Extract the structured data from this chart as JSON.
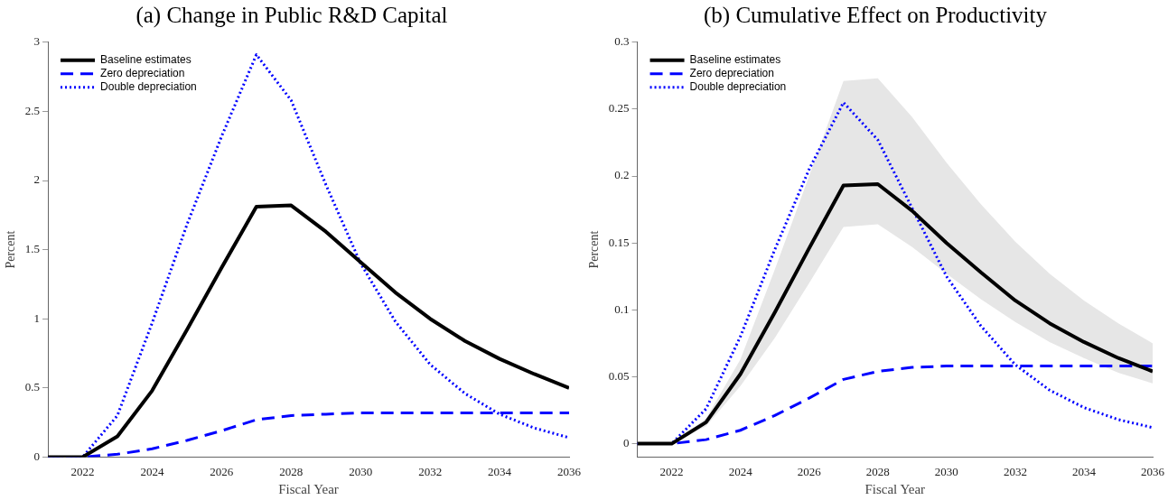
{
  "chart_data": [
    {
      "type": "line",
      "title": "(a) Change in Public R&D Capital",
      "xlabel": "Fiscal Year",
      "ylabel": "Percent",
      "x": [
        2021,
        2022,
        2023,
        2024,
        2025,
        2026,
        2027,
        2028,
        2029,
        2030,
        2031,
        2032,
        2033,
        2034,
        2035,
        2036
      ],
      "xlim": [
        2021,
        2036
      ],
      "xticks": [
        2022,
        2024,
        2026,
        2028,
        2030,
        2032,
        2034,
        2036
      ],
      "ylim": [
        0,
        3
      ],
      "yticks": [
        0,
        0.5,
        1,
        1.5,
        2,
        2.5,
        3
      ],
      "grid": false,
      "legend": "top left",
      "marker": "none",
      "series": [
        {
          "name": "Baseline estimates",
          "color": "#000000",
          "line_style": "solid",
          "values": [
            0,
            0,
            0.15,
            0.48,
            0.92,
            1.37,
            1.81,
            1.82,
            1.63,
            1.41,
            1.19,
            1.0,
            0.84,
            0.71,
            0.6,
            0.5
          ]
        },
        {
          "name": "Zero depreciation",
          "color": "#0000ff",
          "line_style": "dashed",
          "values": [
            0,
            0,
            0.02,
            0.06,
            0.12,
            0.19,
            0.27,
            0.3,
            0.31,
            0.32,
            0.32,
            0.32,
            0.32,
            0.32,
            0.32,
            0.32
          ]
        },
        {
          "name": "Double depreciation",
          "color": "#0000ff",
          "line_style": "dotted",
          "values": [
            0,
            0,
            0.3,
            0.97,
            1.68,
            2.32,
            2.91,
            2.58,
            1.97,
            1.4,
            0.98,
            0.67,
            0.46,
            0.31,
            0.21,
            0.14
          ]
        }
      ]
    },
    {
      "type": "line",
      "title": "(b) Cumulative Effect on Productivity",
      "xlabel": "Fiscal Year",
      "ylabel": "Percent",
      "x": [
        2021,
        2022,
        2023,
        2024,
        2025,
        2026,
        2027,
        2028,
        2029,
        2030,
        2031,
        2032,
        2033,
        2034,
        2035,
        2036
      ],
      "xlim": [
        2021,
        2036
      ],
      "xticks": [
        2022,
        2024,
        2026,
        2028,
        2030,
        2032,
        2034,
        2036
      ],
      "ylim": [
        -0.01,
        0.3
      ],
      "yticks": [
        0,
        0.05,
        0.1,
        0.15,
        0.2,
        0.25,
        0.3
      ],
      "grid": false,
      "legend": "top left",
      "marker": "none",
      "series": [
        {
          "name": "Baseline estimates",
          "color": "#000000",
          "line_style": "solid",
          "values": [
            0,
            0,
            0.016,
            0.052,
            0.098,
            0.146,
            0.193,
            0.194,
            0.174,
            0.15,
            0.128,
            0.107,
            0.09,
            0.076,
            0.064,
            0.054
          ],
          "lower": [
            0,
            0,
            0.013,
            0.043,
            0.079,
            0.12,
            0.162,
            0.164,
            0.147,
            0.127,
            0.108,
            0.091,
            0.076,
            0.064,
            0.053,
            0.045
          ],
          "upper": [
            0,
            0,
            0.019,
            0.063,
            0.13,
            0.2,
            0.271,
            0.273,
            0.244,
            0.21,
            0.179,
            0.151,
            0.127,
            0.107,
            0.09,
            0.075
          ]
        },
        {
          "name": "Zero depreciation",
          "color": "#0000ff",
          "line_style": "dashed",
          "values": [
            0,
            0,
            0.003,
            0.01,
            0.021,
            0.034,
            0.048,
            0.054,
            0.057,
            0.058,
            0.058,
            0.058,
            0.058,
            0.058,
            0.058,
            0.058
          ]
        },
        {
          "name": "Double depreciation",
          "color": "#0000ff",
          "line_style": "dotted",
          "values": [
            0,
            0,
            0.026,
            0.08,
            0.145,
            0.205,
            0.255,
            0.227,
            0.176,
            0.125,
            0.088,
            0.059,
            0.04,
            0.027,
            0.018,
            0.012
          ]
        }
      ]
    }
  ]
}
